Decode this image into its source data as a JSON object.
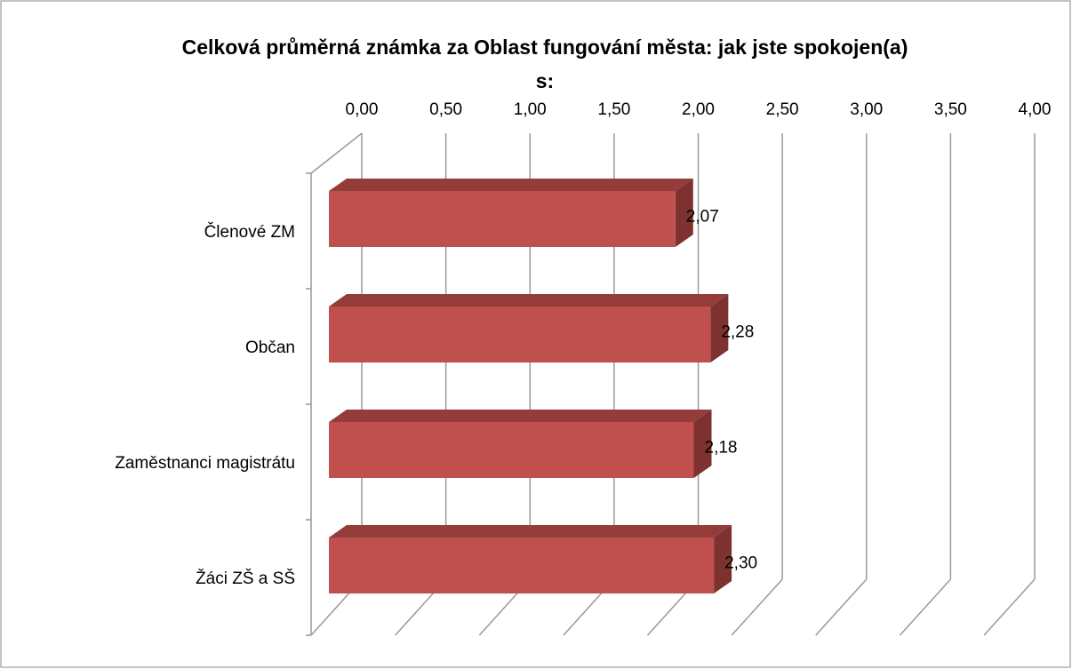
{
  "chart_data": {
    "type": "bar3d",
    "title": "Celková průměrná známka za Oblast fungování města: jak jste spokojen(a) s:",
    "categories": [
      "Členové ZM",
      "Občan",
      "Zaměstnanci magistrátu",
      "Žáci ZŠ a SŠ"
    ],
    "values": [
      2.07,
      2.28,
      2.18,
      2.3
    ],
    "value_labels": [
      "2,07",
      "2,28",
      "2,18",
      "2,30"
    ],
    "color": "#c0504d",
    "xlim": [
      0,
      4
    ],
    "xticks": [
      {
        "value": 0,
        "label": "0,00"
      },
      {
        "value": 0.5,
        "label": "0,50"
      },
      {
        "value": 1,
        "label": "1,00"
      },
      {
        "value": 1.5,
        "label": "1,50"
      },
      {
        "value": 2,
        "label": "2,00"
      },
      {
        "value": 2.5,
        "label": "2,50"
      },
      {
        "value": 3,
        "label": "3,00"
      },
      {
        "value": 3.5,
        "label": "3,50"
      },
      {
        "value": 4,
        "label": "4,00"
      }
    ],
    "grid": true
  }
}
